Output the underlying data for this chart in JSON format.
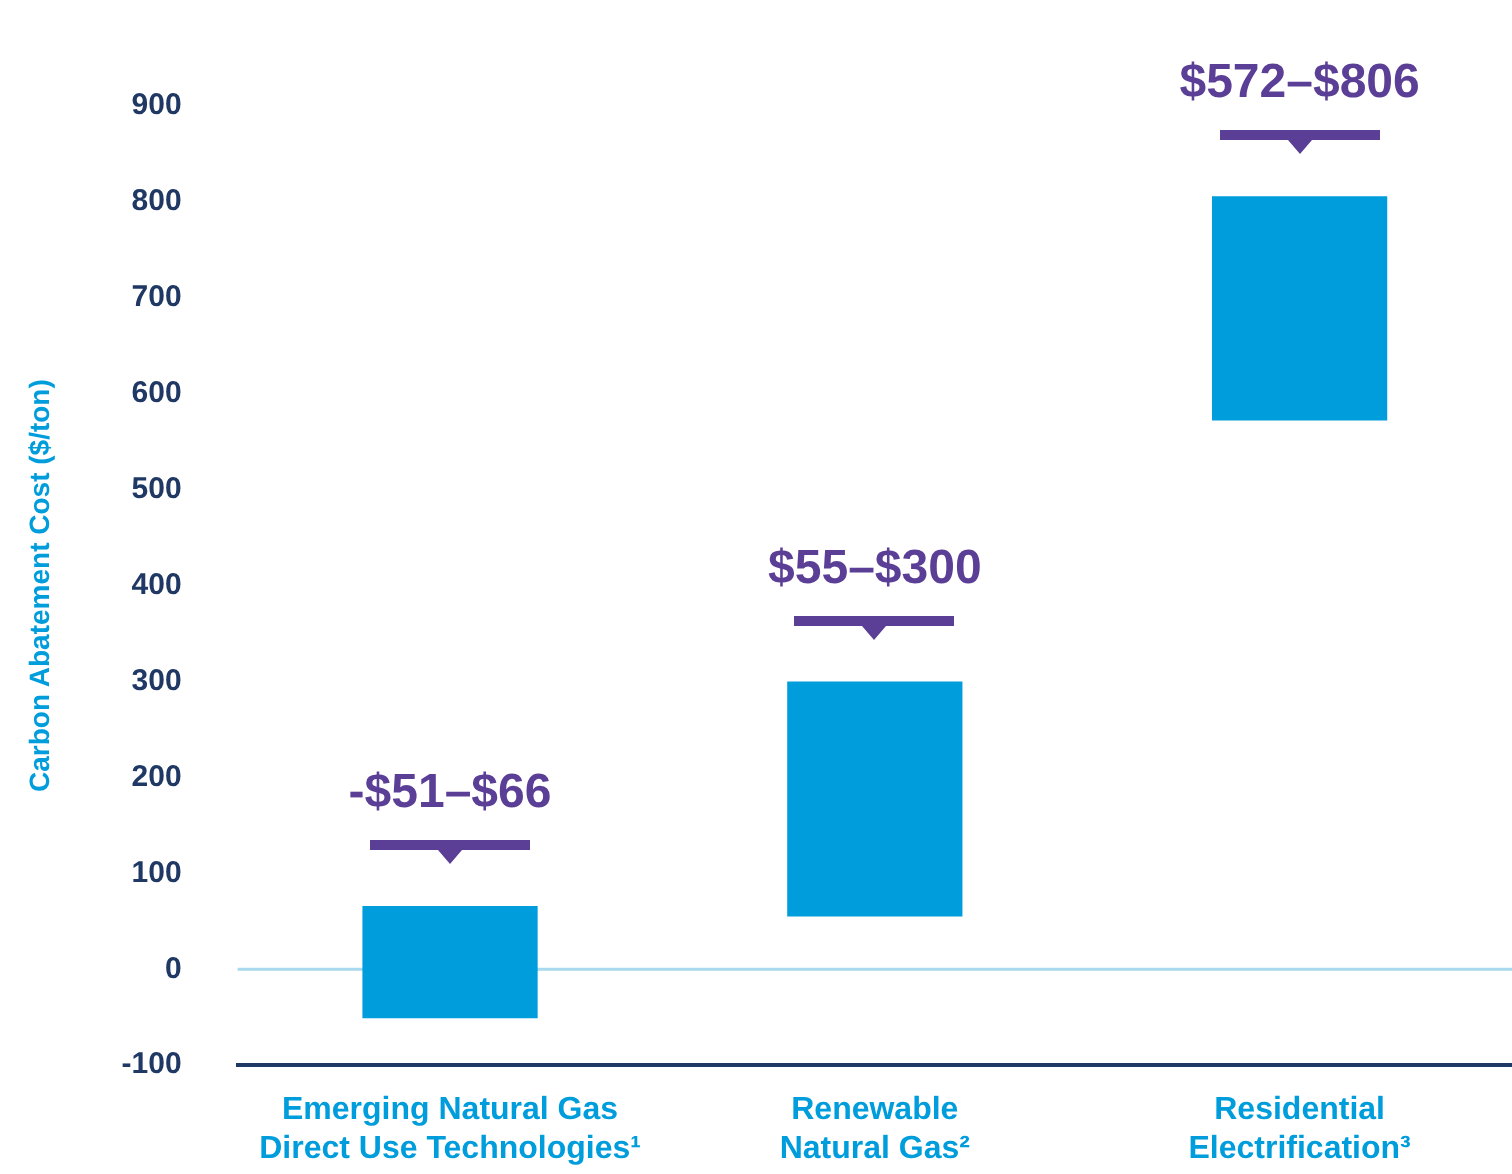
{
  "chart_data": {
    "type": "bar",
    "ylabel": "Carbon Abatement Cost ($/ton)",
    "categories": [
      "Emerging Natural Gas\nDirect Use Technologies¹",
      "Renewable\nNatural Gas²",
      "Residential\nElectrification³"
    ],
    "base": [
      -51,
      55,
      572
    ],
    "values": [
      117,
      245,
      234
    ],
    "value_labels": [
      "-$51–$66",
      "$55–$300",
      "$572–$806"
    ],
    "color": "#009ddc",
    "ylim": [
      -100,
      900
    ],
    "yticks": [
      -100,
      0,
      100,
      200,
      300,
      400,
      500,
      600,
      700,
      800,
      900
    ],
    "grid": false,
    "legend": false,
    "ref_lines": [
      {
        "axis": "y",
        "value": 0,
        "color": "#a9d9ee"
      }
    ]
  }
}
